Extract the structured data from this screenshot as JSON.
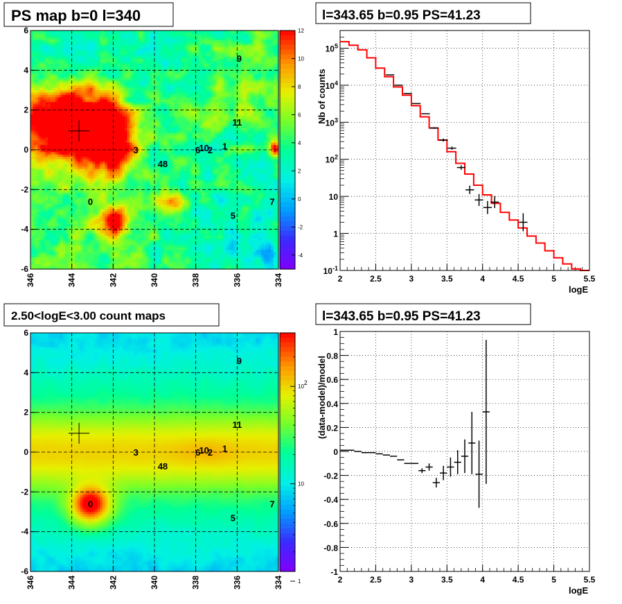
{
  "panels": {
    "ps_map_title": "PS map b=0 l=340",
    "spectrum_title": "l=343.65 b=0.95 PS=41.23",
    "count_map_title": "2.50<logE<3.00 count maps",
    "residual_title": "l=343.65 b=0.95 PS=41.23"
  },
  "sources": {
    "labels": [
      "0",
      "1",
      "2",
      "3",
      "48",
      "5",
      "6",
      "7",
      "9",
      "10",
      "11"
    ],
    "l": [
      343.1,
      336.6,
      337.3,
      340.9,
      339.6,
      336.2,
      337.9,
      334.3,
      335.9,
      337.6,
      336.0
    ],
    "b": [
      -2.6,
      0.2,
      0.0,
      0.0,
      -0.7,
      -3.3,
      0.0,
      -2.6,
      4.6,
      0.1,
      1.4
    ],
    "candidate_marker": {
      "l": 343.65,
      "b": 0.95
    }
  },
  "chart_data": [
    {
      "type": "heatmap",
      "title": "PS map b=0 l=340",
      "xlabel": "",
      "ylabel": "",
      "xlim": [
        346,
        334
      ],
      "ylim": [
        -6,
        6
      ],
      "x_ticks": [
        "346",
        "344",
        "342",
        "340",
        "338",
        "336",
        "334"
      ],
      "y_ticks": [
        "-6",
        "-4",
        "-2",
        "0",
        "2",
        "4",
        "6"
      ],
      "z_ticks": [
        "-4",
        "-2",
        "0",
        "2",
        "4",
        "6",
        "8",
        "10",
        "12"
      ],
      "zlim": [
        -5,
        12
      ],
      "grid": true
    },
    {
      "type": "line",
      "title": "l=343.65 b=0.95 PS=41.23",
      "xlabel": "logE",
      "ylabel": "Nb of counts",
      "xlim": [
        2,
        5.5
      ],
      "ylim": [
        0.1,
        300000
      ],
      "ylog": true,
      "x_ticks": [
        "2",
        "2.5",
        "3",
        "3.5",
        "4",
        "4.5",
        "5",
        "5.5"
      ],
      "y_ticks": [
        "10^-1",
        "1",
        "10",
        "10^2",
        "10^3",
        "10^4",
        "10^5"
      ],
      "grid": true,
      "series": [
        {
          "role": "model",
          "color": "#ff0000",
          "x": [
            2.0,
            2.125,
            2.25,
            2.375,
            2.5,
            2.625,
            2.75,
            2.875,
            3.0,
            3.125,
            3.25,
            3.375,
            3.5,
            3.625,
            3.75,
            3.875,
            4.0,
            4.125,
            4.25,
            4.375,
            4.5,
            4.625,
            4.75,
            4.875,
            5.0,
            5.125,
            5.25,
            5.375
          ],
          "y": [
            150000,
            120000,
            90000,
            55000,
            29000,
            17000,
            9000,
            5400,
            2800,
            1400,
            700,
            330,
            160,
            78,
            40,
            20,
            11,
            6.5,
            3.7,
            2.3,
            1.4,
            0.85,
            0.55,
            0.34,
            0.22,
            0.15,
            0.11,
            0.1
          ]
        },
        {
          "role": "data",
          "color": "#000000",
          "x": [
            2.7,
            2.82,
            2.95,
            3.07,
            3.2,
            3.32,
            3.45,
            3.57,
            3.7,
            3.82,
            3.95,
            4.07,
            4.17,
            4.57
          ],
          "y": [
            19000,
            10000,
            6000,
            3200,
            1700,
            700,
            330,
            200,
            60,
            15,
            8,
            5,
            7,
            2
          ],
          "yerr_factor": [
            1.0,
            1.0,
            1.0,
            1.0,
            1.0,
            1.05,
            1.1,
            1.1,
            1.15,
            1.3,
            1.45,
            1.5,
            1.45,
            1.75
          ]
        }
      ]
    },
    {
      "type": "heatmap",
      "title": "2.50<logE<3.00 count maps",
      "xlabel": "",
      "ylabel": "",
      "xlim": [
        346,
        334
      ],
      "ylim": [
        -6,
        6
      ],
      "x_ticks": [
        "346",
        "344",
        "342",
        "340",
        "338",
        "336",
        "334"
      ],
      "y_ticks": [
        "-6",
        "-4",
        "-2",
        "0",
        "2",
        "4",
        "6"
      ],
      "z_ticks": [
        "1",
        "10",
        "10^2"
      ],
      "zlog": true,
      "grid": true
    },
    {
      "type": "scatter",
      "title": "l=343.65 b=0.95 PS=41.23",
      "xlabel": "logE",
      "ylabel": "(data-model)/model",
      "xlim": [
        2,
        5.5
      ],
      "ylim": [
        -1,
        1
      ],
      "x_ticks": [
        "2",
        "2.5",
        "3",
        "3.5",
        "4",
        "4.5",
        "5",
        "5.5"
      ],
      "y_ticks": [
        "-1",
        "-0.8",
        "-0.6",
        "-0.4",
        "-0.2",
        "0",
        "0.2",
        "0.4",
        "0.6",
        "0.8",
        "1"
      ],
      "grid": true,
      "series": [
        {
          "role": "residual",
          "color": "#000000",
          "x": [
            2.05,
            2.15,
            2.25,
            2.35,
            2.45,
            2.55,
            2.65,
            2.75,
            2.85,
            2.95,
            3.05,
            3.15,
            3.25,
            3.35,
            3.45,
            3.55,
            3.65,
            3.75,
            3.85,
            3.95,
            4.05
          ],
          "y": [
            0.01,
            0.01,
            0.0,
            -0.01,
            -0.01,
            -0.02,
            -0.03,
            -0.04,
            -0.07,
            -0.1,
            -0.1,
            -0.16,
            -0.13,
            -0.26,
            -0.18,
            -0.13,
            -0.09,
            -0.04,
            0.07,
            -0.19,
            0.33
          ],
          "yerr": [
            0.0,
            0.0,
            0.0,
            0.0,
            0.0,
            0.0,
            0.0,
            0.0,
            0.0,
            0.0,
            0.0,
            0.02,
            0.03,
            0.04,
            0.06,
            0.08,
            0.1,
            0.14,
            0.26,
            0.28,
            0.6
          ]
        }
      ]
    }
  ]
}
